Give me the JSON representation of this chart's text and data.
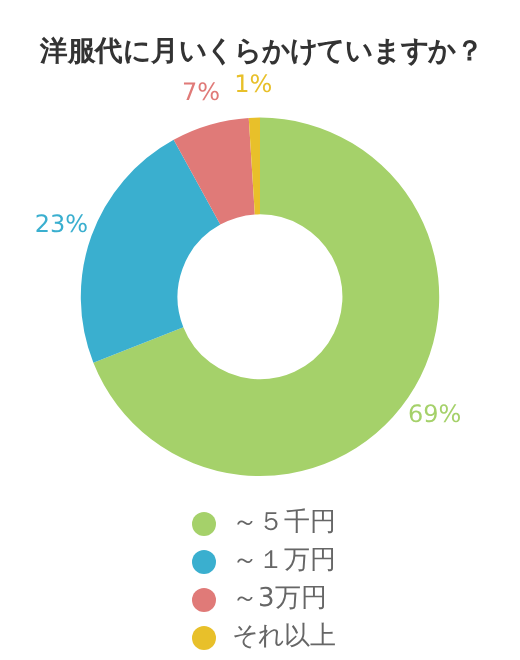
{
  "chart_data": {
    "type": "donut",
    "title": "洋服代に月いくらかけていますか？",
    "categories": [
      "～５千円",
      "～１万円",
      "～3万円",
      "それ以上"
    ],
    "values": [
      69,
      23,
      7,
      1
    ],
    "colors": [
      "#a5d16a",
      "#3aafcf",
      "#e07a78",
      "#e8c02a"
    ],
    "value_labels": [
      "69%",
      "23%",
      "7%",
      "1%"
    ],
    "legend": "bottom"
  }
}
